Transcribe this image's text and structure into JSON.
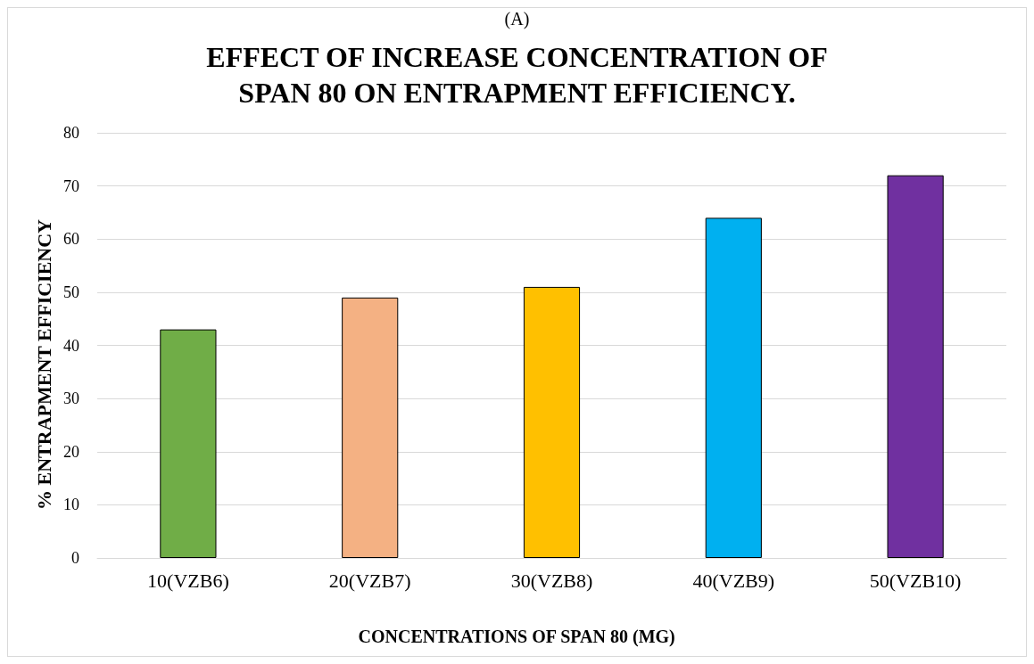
{
  "chart_data": {
    "type": "bar",
    "title": "EFFECT OF INCREASE CONCENTRATION OF\nSPAN 80 ON ENTRAPMENT EFFICIENCY.",
    "xlabel": "CONCENTRATIONS OF SPAN 80 (MG)",
    "ylabel": "% ENTRAPMENT EFFICIENCY",
    "annotations": [
      "(A)"
    ],
    "categories": [
      "10(VZB6)",
      "20(VZB7)",
      "30(VZB8)",
      "40(VZB9)",
      "50(VZB10)"
    ],
    "values": [
      43,
      49,
      51,
      64,
      72
    ],
    "colors": [
      "#70ad47",
      "#f4b183",
      "#ffc000",
      "#00b0f0",
      "#7030a0"
    ],
    "ylim": [
      0,
      80
    ],
    "yticks": [
      0,
      10,
      20,
      30,
      40,
      50,
      60,
      70,
      80
    ],
    "grid": "y"
  }
}
